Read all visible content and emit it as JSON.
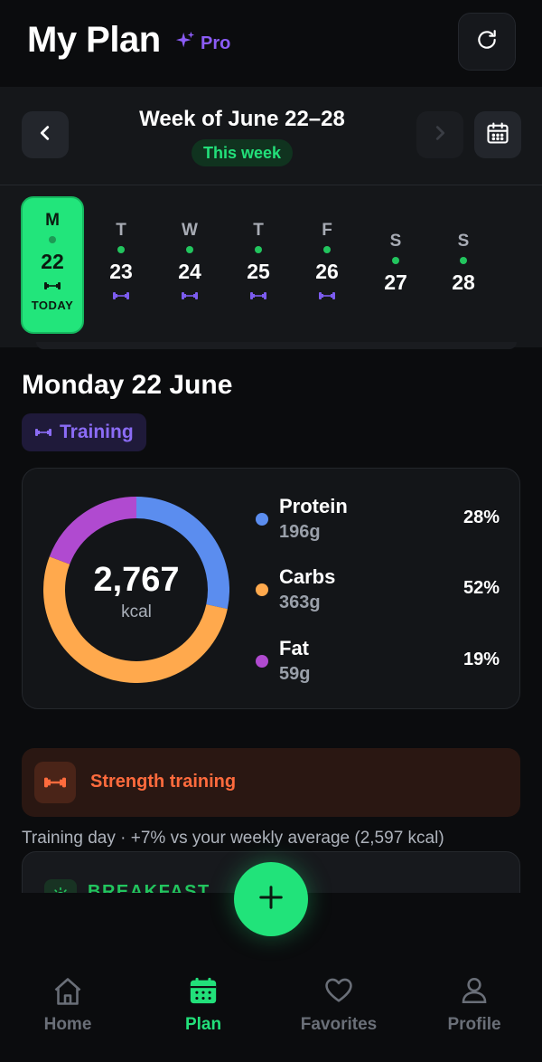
{
  "header": {
    "title": "My Plan",
    "badge": "Pro"
  },
  "week": {
    "title": "Week of June 22–28",
    "badge": "This week",
    "days": [
      {
        "letter": "M",
        "date": "22",
        "today_label": "TODAY",
        "training": true
      },
      {
        "letter": "T",
        "date": "23",
        "training": true
      },
      {
        "letter": "W",
        "date": "24",
        "training": true
      },
      {
        "letter": "T",
        "date": "25",
        "training": true
      },
      {
        "letter": "F",
        "date": "26",
        "training": true
      },
      {
        "letter": "S",
        "date": "27",
        "training": false
      },
      {
        "letter": "S",
        "date": "28",
        "training": false
      }
    ]
  },
  "day": {
    "heading": "Monday 22 June",
    "chip": "Training"
  },
  "macros": {
    "kcal": "2,767",
    "kcal_unit": "kcal",
    "items": [
      {
        "name": "Protein",
        "grams": "196g",
        "percent": "28%",
        "color": "#5b8def",
        "fraction": 0.28
      },
      {
        "name": "Carbs",
        "grams": "363g",
        "percent": "52%",
        "color": "#ffa94d",
        "fraction": 0.52
      },
      {
        "name": "Fat",
        "grams": "59g",
        "percent": "19%",
        "color": "#b04ad0",
        "fraction": 0.19
      }
    ]
  },
  "strength": {
    "label": "Strength training"
  },
  "training_note": "Training day · +7% vs your weekly average (2,597 kcal)",
  "meal": {
    "label": "BREAKFAST"
  },
  "nav": {
    "items": [
      {
        "label": "Home",
        "icon": "home-icon",
        "active": false
      },
      {
        "label": "Plan",
        "icon": "calendar-icon",
        "active": true
      },
      {
        "label": "Favorites",
        "icon": "heart-icon",
        "active": false
      },
      {
        "label": "Profile",
        "icon": "person-icon",
        "active": false
      }
    ]
  },
  "colors": {
    "accent_green": "#22e07a",
    "accent_purple": "#8b5cf6",
    "accent_orange": "#ff6b3d",
    "background": "#0b0c0e"
  }
}
